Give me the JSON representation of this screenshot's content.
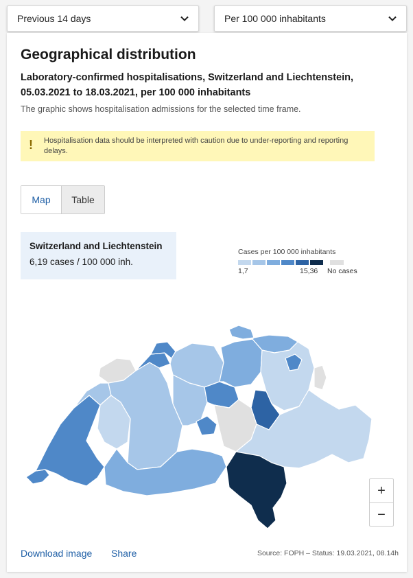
{
  "filters": {
    "period": "Previous 14 days",
    "unit": "Per 100 000 inhabitants"
  },
  "card": {
    "title": "Geographical distribution",
    "subtitle": "Laboratory-confirmed hospitalisations, Switzerland and Liechtenstein, 05.03.2021 to 18.03.2021, per 100 000 inhabitants",
    "description": "The graphic shows hospitalisation admissions for the selected time frame.",
    "warning": "Hospitalisation data should be interpreted with caution due to under-reporting and reporting delays."
  },
  "tabs": [
    {
      "label": "Map",
      "active": true
    },
    {
      "label": "Table",
      "active": false
    }
  ],
  "info": {
    "region": "Switzerland and Liechtenstein",
    "value": "6,19 cases / 100 000 inh."
  },
  "legend": {
    "title": "Cases per 100 000 inhabitants",
    "min_label": "1,7",
    "max_label": "15,36",
    "no_cases_label": "No cases",
    "colors": [
      "#c3d8ee",
      "#a6c6e8",
      "#7fadde",
      "#4f88c8",
      "#2d63a4",
      "#0f2d4d"
    ],
    "no_cases_color": "#e0e0e0"
  },
  "zoom": {
    "in": "+",
    "out": "−"
  },
  "footer": {
    "download": "Download image",
    "share": "Share",
    "source": "Source: FOPH – Status: 19.03.2021, 08.14h"
  }
}
